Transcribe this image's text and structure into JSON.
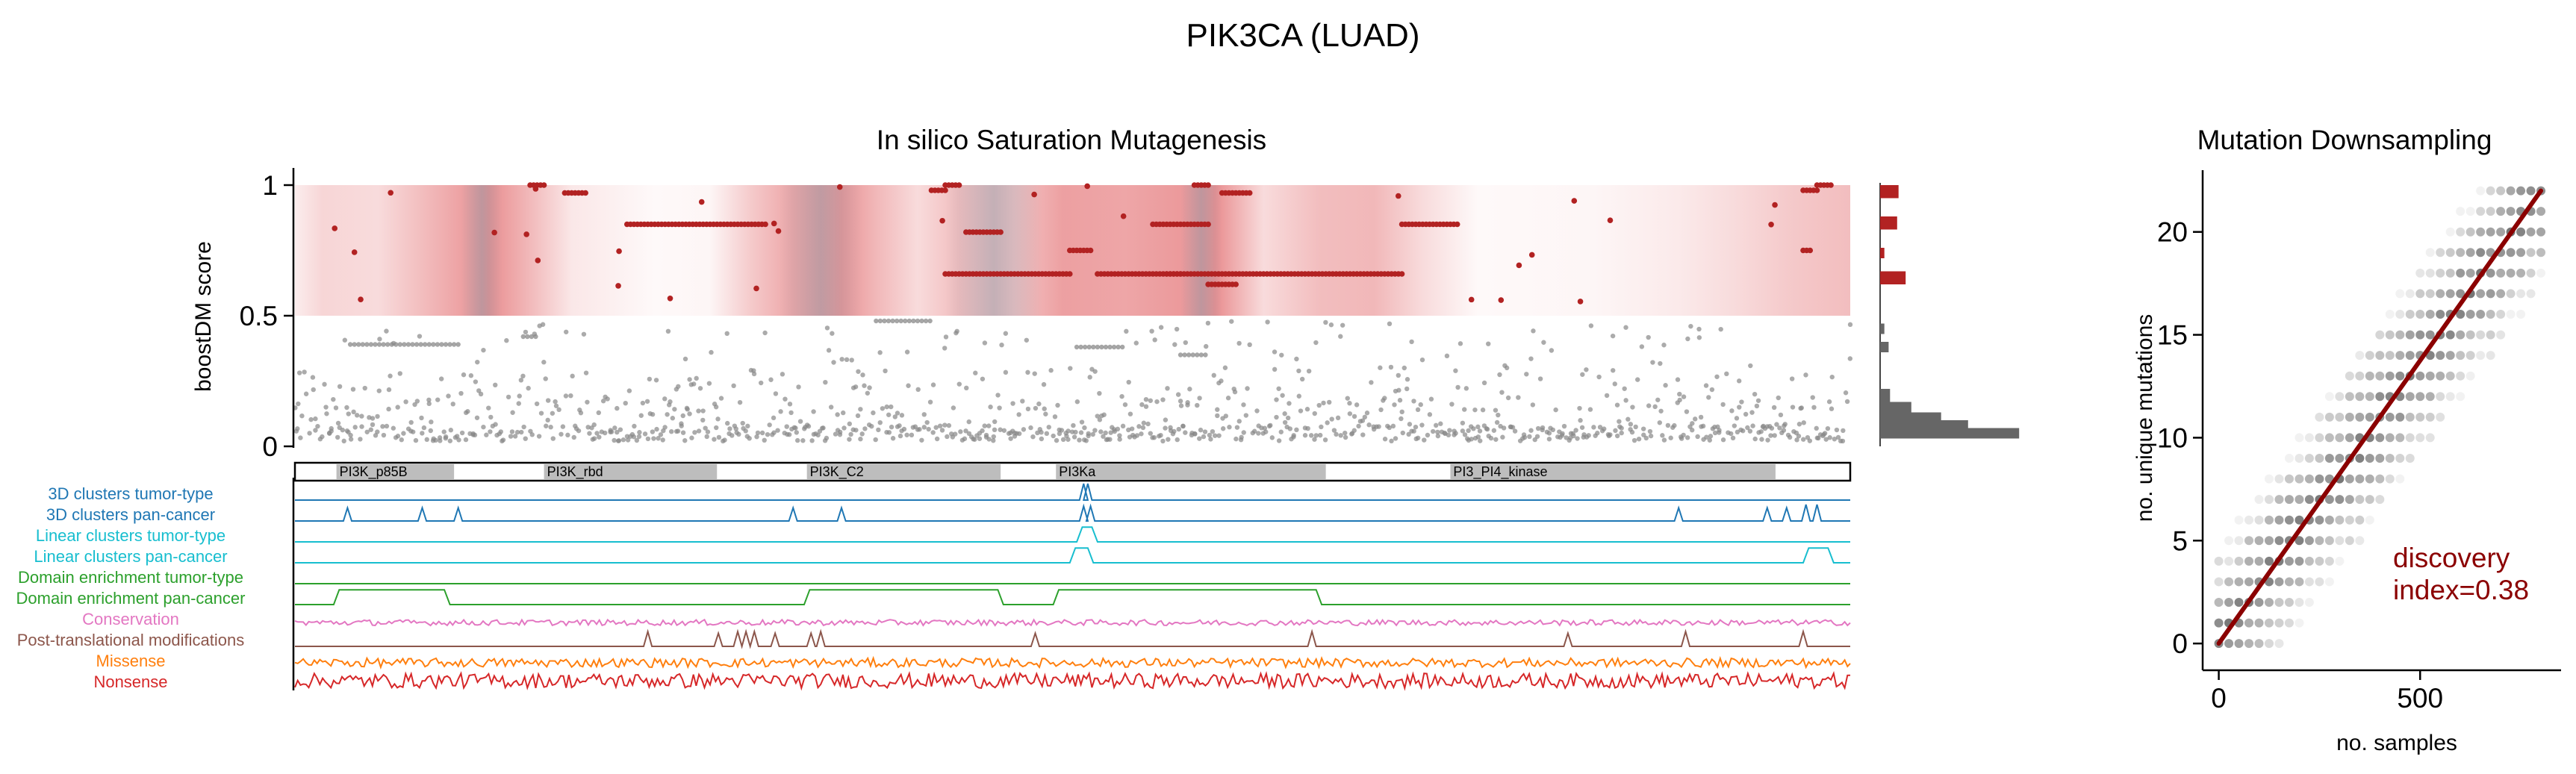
{
  "figure": {
    "title": "PIK3CA (LUAD)"
  },
  "chart_data": [
    {
      "type": "scatter",
      "title": "In silico Saturation Mutagenesis",
      "xlabel": "",
      "ylabel": "boostDM score",
      "yticks": [
        "0",
        "0.5",
        "1"
      ],
      "ylim": [
        0,
        1.05
      ],
      "threshold": 0.5,
      "colors": {
        "driver": "#b22222",
        "passenger": "#888888",
        "heat": "#e8888a"
      },
      "driver_levels": [
        {
          "y": 1.0,
          "x_ranges": [
            [
              170,
              180
            ],
            [
              470,
              480
            ],
            [
              650,
              660
            ],
            [
              1100,
              1110
            ]
          ]
        },
        {
          "y": 0.98,
          "x_ranges": [
            [
              460,
              470
            ],
            [
              1090,
              1100
            ]
          ]
        },
        {
          "y": 0.97,
          "x_ranges": [
            [
              195,
              210
            ],
            [
              670,
              690
            ]
          ]
        },
        {
          "y": 0.85,
          "x_ranges": [
            [
              240,
              340
            ],
            [
              620,
              660
            ],
            [
              800,
              840
            ]
          ]
        },
        {
          "y": 0.82,
          "x_ranges": [
            [
              485,
              510
            ]
          ]
        },
        {
          "y": 0.75,
          "x_ranges": [
            [
              560,
              575
            ],
            [
              1090,
              1095
            ]
          ]
        },
        {
          "y": 0.66,
          "x_ranges": [
            [
              470,
              560
            ],
            [
              580,
              640
            ],
            [
              630,
              800
            ]
          ]
        },
        {
          "y": 0.62,
          "x_ranges": [
            [
              660,
              680
            ]
          ]
        }
      ],
      "heat_profile": [
        [
          0,
          0.15
        ],
        [
          20,
          0.35
        ],
        [
          60,
          0.3
        ],
        [
          110,
          0.7
        ],
        [
          140,
          0.95
        ],
        [
          165,
          0.65
        ],
        [
          200,
          0.2
        ],
        [
          260,
          0.05
        ],
        [
          300,
          0.08
        ],
        [
          330,
          0.45
        ],
        [
          360,
          0.75
        ],
        [
          395,
          0.9
        ],
        [
          420,
          0.6
        ],
        [
          450,
          0.3
        ],
        [
          480,
          0.55
        ],
        [
          520,
          0.5
        ],
        [
          555,
          0.8
        ],
        [
          600,
          0.75
        ],
        [
          640,
          0.85
        ],
        [
          665,
          0.95
        ],
        [
          700,
          0.3
        ],
        [
          740,
          0.55
        ],
        [
          780,
          0.6
        ],
        [
          815,
          0.3
        ],
        [
          855,
          0.05
        ],
        [
          940,
          0.08
        ],
        [
          1000,
          0.18
        ],
        [
          1040,
          0.3
        ],
        [
          1080,
          0.45
        ],
        [
          1100,
          0.5
        ],
        [
          1124,
          0.55
        ]
      ]
    },
    {
      "type": "bar",
      "title": "",
      "orientation": "horizontal",
      "bins": [
        {
          "y0": 0.95,
          "y1": 1.0,
          "count": 0.13,
          "color": "#b22222"
        },
        {
          "y0": 0.83,
          "y1": 0.88,
          "count": 0.12,
          "color": "#b22222"
        },
        {
          "y0": 0.72,
          "y1": 0.76,
          "count": 0.03,
          "color": "#b22222"
        },
        {
          "y0": 0.62,
          "y1": 0.67,
          "count": 0.18,
          "color": "#b22222"
        },
        {
          "y0": 0.43,
          "y1": 0.47,
          "count": 0.03,
          "color": "#666666"
        },
        {
          "y0": 0.36,
          "y1": 0.4,
          "count": 0.06,
          "color": "#666666"
        },
        {
          "y0": 0.17,
          "y1": 0.22,
          "count": 0.07,
          "color": "#666666"
        },
        {
          "y0": 0.13,
          "y1": 0.17,
          "count": 0.22,
          "color": "#666666"
        },
        {
          "y0": 0.1,
          "y1": 0.13,
          "count": 0.43,
          "color": "#666666"
        },
        {
          "y0": 0.07,
          "y1": 0.1,
          "count": 0.62,
          "color": "#666666"
        },
        {
          "y0": 0.03,
          "y1": 0.07,
          "count": 0.98,
          "color": "#666666"
        }
      ]
    },
    {
      "type": "line",
      "title": "",
      "xlim": [
        0,
        1124
      ],
      "domain_colors": {
        "box": "#bdbdbd",
        "outline": "#000000"
      },
      "domains": [
        {
          "name": "PI3K_p85B",
          "start": 30,
          "end": 115
        },
        {
          "name": "PI3K_rbd",
          "start": 180,
          "end": 305
        },
        {
          "name": "PI3K_C2",
          "start": 370,
          "end": 510
        },
        {
          "name": "PI3Ka",
          "start": 550,
          "end": 745
        },
        {
          "name": "PI3_PI4_kinase",
          "start": 835,
          "end": 1070
        }
      ],
      "tracks": [
        {
          "name": "3D clusters tumor-type",
          "color": "#1f77b4",
          "type": "peaks",
          "peaks": [
            [
              570,
              1.0
            ],
            [
              573,
              1.0
            ]
          ]
        },
        {
          "name": "3D clusters pan-cancer",
          "color": "#1f77b4",
          "type": "peaks",
          "peaks": [
            [
              38,
              0.8
            ],
            [
              92,
              0.8
            ],
            [
              118,
              0.8
            ],
            [
              360,
              0.8
            ],
            [
              395,
              0.8
            ],
            [
              570,
              0.9
            ],
            [
              575,
              0.9
            ],
            [
              1000,
              0.8
            ],
            [
              1064,
              0.8
            ],
            [
              1078,
              0.8
            ],
            [
              1092,
              1.0
            ],
            [
              1100,
              1.0
            ]
          ]
        },
        {
          "name": "Linear clusters tumor-type",
          "color": "#17becf",
          "type": "bumps",
          "bumps": [
            [
              567,
              578,
              0.9
            ]
          ]
        },
        {
          "name": "Linear clusters pan-cancer",
          "color": "#17becf",
          "type": "bumps",
          "bumps": [
            [
              562,
              575,
              0.9
            ],
            [
              1092,
              1110,
              0.9
            ]
          ]
        },
        {
          "name": "Domain enrichment tumor-type",
          "color": "#2ca02c",
          "type": "flat"
        },
        {
          "name": "Domain enrichment pan-cancer",
          "color": "#2ca02c",
          "type": "bumps",
          "bumps": [
            [
              30,
              110,
              0.9
            ],
            [
              370,
              510,
              0.9
            ],
            [
              550,
              740,
              0.9
            ]
          ]
        },
        {
          "name": "Conservation",
          "color": "#e377c2",
          "type": "noise",
          "amp": 0.35
        },
        {
          "name": "Post-translational modifications",
          "color": "#8c564b",
          "type": "peaks",
          "peaks": [
            [
              255,
              0.9
            ],
            [
              306,
              0.8
            ],
            [
              320,
              0.9
            ],
            [
              326,
              0.9
            ],
            [
              332,
              0.9
            ],
            [
              347,
              0.8
            ],
            [
              373,
              0.8
            ],
            [
              380,
              0.9
            ],
            [
              535,
              0.8
            ],
            [
              735,
              0.9
            ],
            [
              920,
              0.8
            ],
            [
              1005,
              0.9
            ],
            [
              1090,
              0.9
            ]
          ]
        },
        {
          "name": "Missense",
          "color": "#ff7f0e",
          "type": "noise",
          "amp": 0.55
        },
        {
          "name": "Nonsense",
          "color": "#d62728",
          "type": "noise",
          "amp": 0.9
        }
      ]
    },
    {
      "type": "scatter",
      "title": "Mutation Downsampling",
      "xlabel": "no. samples",
      "ylabel": "no. unique mutations",
      "xticks": [
        0,
        500
      ],
      "yticks": [
        0,
        5,
        10,
        15,
        20
      ],
      "xlim": [
        -40,
        850
      ],
      "ylim": [
        -1.3,
        23
      ],
      "fit": {
        "x": [
          0,
          800
        ],
        "y": [
          0,
          22
        ],
        "color": "#8b0000"
      },
      "annotation": {
        "line1": "discovery",
        "line2": "index=0.38",
        "color": "#8b0000"
      }
    }
  ]
}
